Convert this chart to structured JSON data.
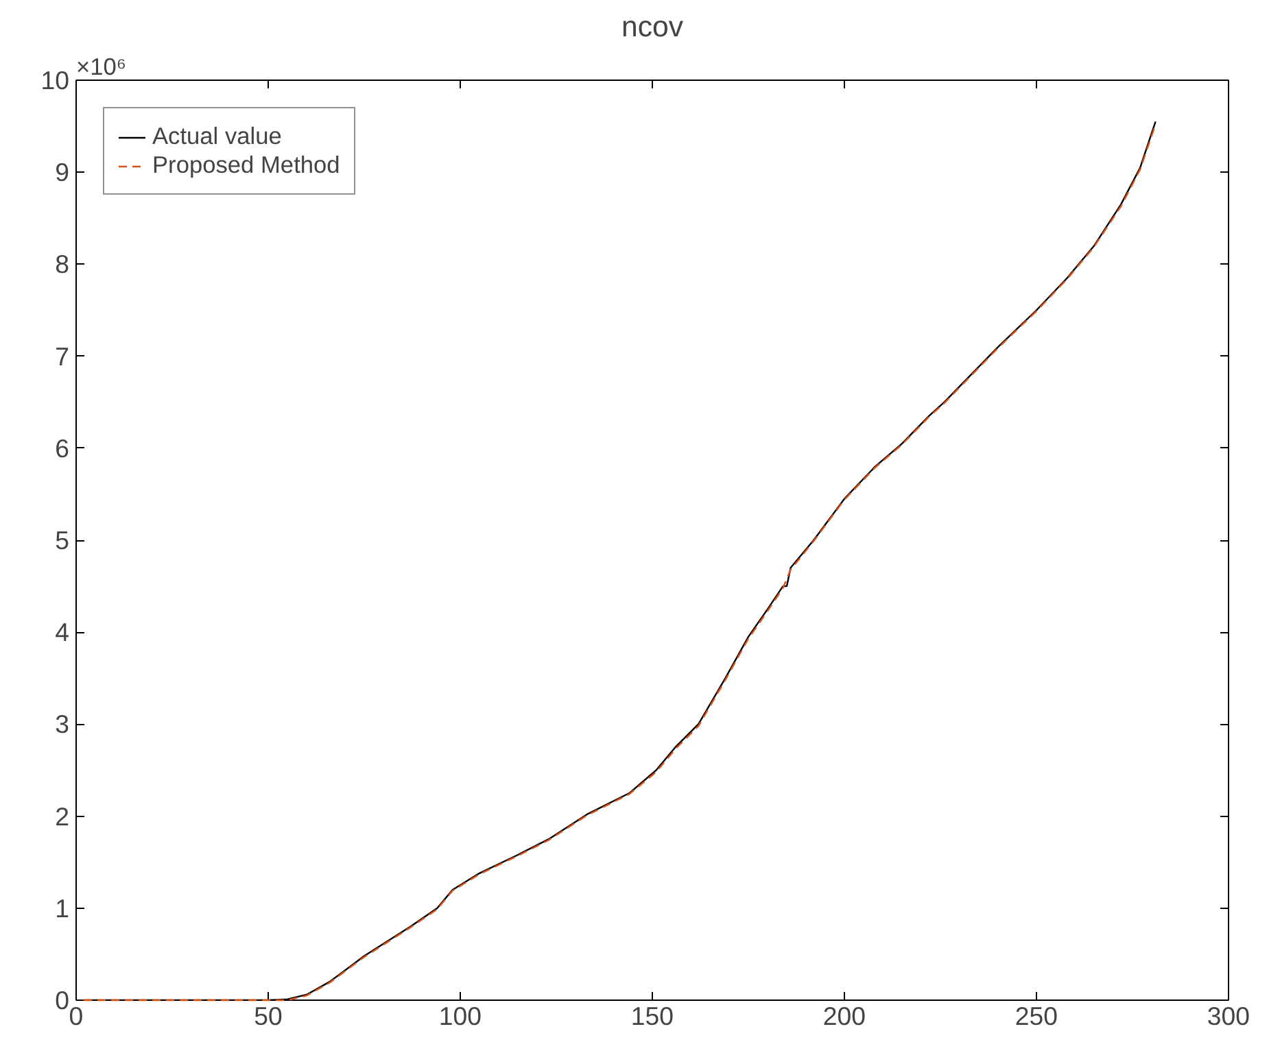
{
  "chart_data": {
    "type": "line",
    "title": "ncov",
    "annotations": [
      "×10⁶"
    ],
    "xlim": [
      0,
      300
    ],
    "xticks": [
      0,
      50,
      100,
      150,
      200,
      250,
      300
    ],
    "ylim": [
      0,
      10
    ],
    "yticks": [
      0,
      1,
      2,
      3,
      4,
      5,
      6,
      7,
      8,
      9,
      10
    ],
    "grid": false,
    "legend": "top left",
    "series": [
      {
        "name": "Actual value",
        "color": "#000000",
        "line_style": "solid",
        "x": [
          2,
          20,
          40,
          50,
          55,
          60,
          66,
          75,
          87,
          94,
          98,
          105,
          115,
          123,
          133,
          144,
          151,
          156,
          162,
          169,
          175,
          180,
          184,
          185,
          186,
          192,
          200,
          208,
          215,
          222,
          226,
          233,
          240,
          250,
          258,
          265,
          272,
          277,
          281
        ],
        "values": [
          0,
          0,
          0,
          0,
          0.01,
          0.06,
          0.2,
          0.48,
          0.8,
          1.0,
          1.2,
          1.38,
          1.58,
          1.75,
          2.02,
          2.25,
          2.5,
          2.75,
          3.0,
          3.5,
          3.95,
          4.25,
          4.5,
          4.5,
          4.7,
          5.0,
          5.45,
          5.8,
          6.05,
          6.35,
          6.5,
          6.8,
          7.1,
          7.5,
          7.85,
          8.2,
          8.65,
          9.05,
          9.55
        ]
      },
      {
        "name": "Proposed Method",
        "color": "#d95319",
        "line_style": "dashed",
        "x": [
          2,
          20,
          40,
          50,
          55,
          60,
          66,
          75,
          87,
          94,
          98,
          105,
          115,
          123,
          133,
          144,
          151,
          156,
          162,
          169,
          175,
          180,
          184,
          186,
          192,
          200,
          208,
          215,
          222,
          226,
          233,
          240,
          250,
          258,
          265,
          272,
          277,
          281
        ],
        "values": [
          0,
          0,
          0,
          0,
          0,
          0.05,
          0.19,
          0.47,
          0.79,
          0.99,
          1.19,
          1.37,
          1.57,
          1.74,
          2.01,
          2.24,
          2.48,
          2.73,
          2.98,
          3.48,
          3.93,
          4.23,
          4.48,
          4.68,
          4.99,
          5.44,
          5.79,
          6.04,
          6.34,
          6.49,
          6.79,
          7.09,
          7.49,
          7.84,
          8.19,
          8.63,
          9.03,
          9.52
        ]
      }
    ]
  }
}
